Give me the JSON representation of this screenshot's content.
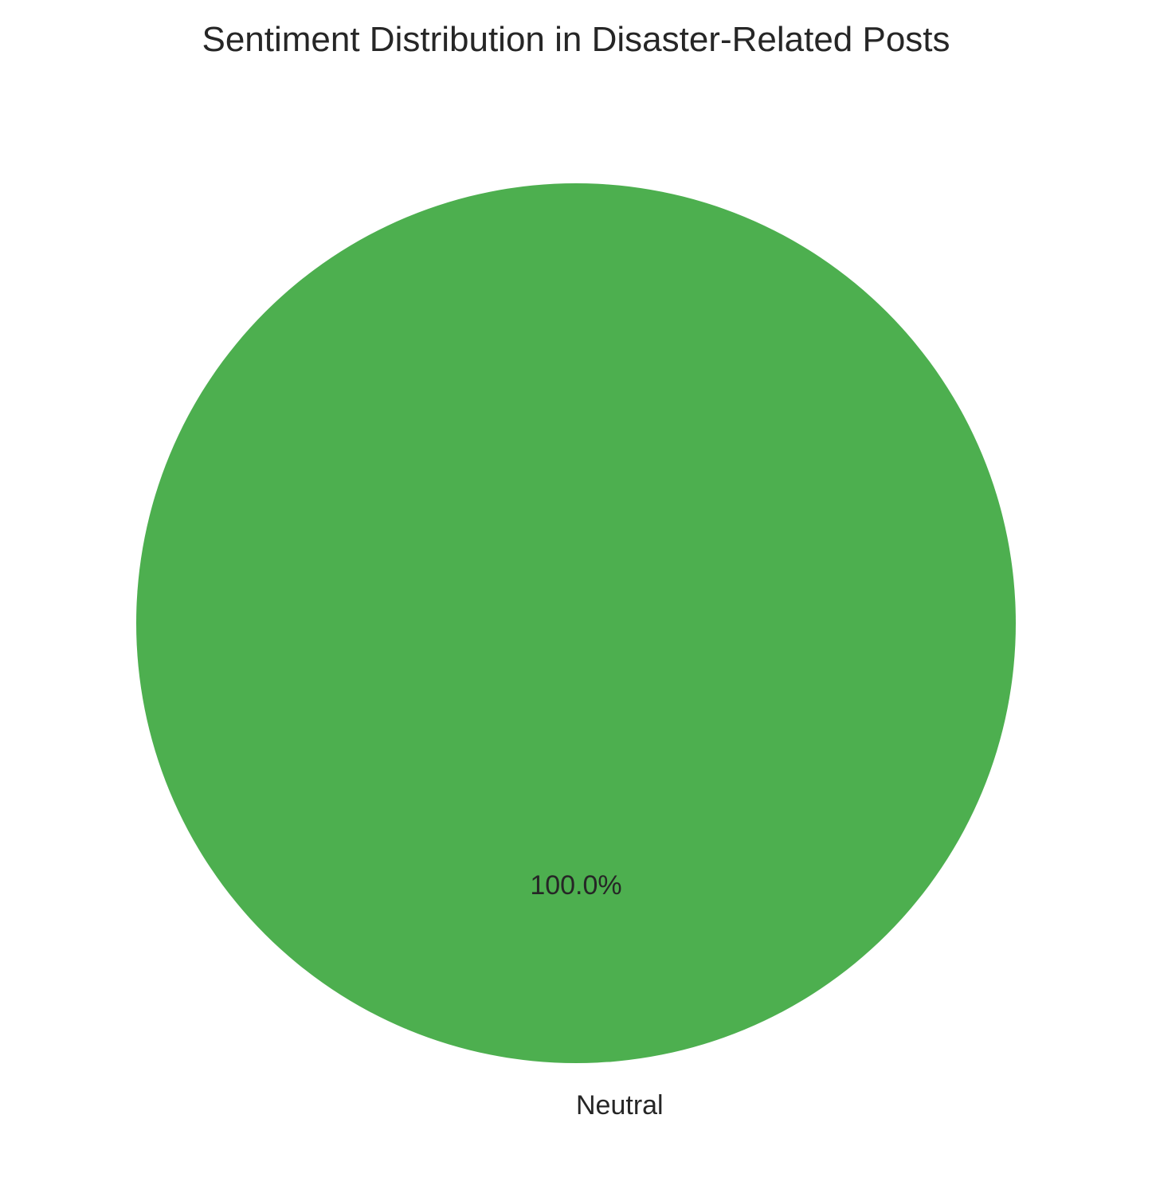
{
  "chart_data": {
    "type": "pie",
    "title": "Sentiment Distribution in Disaster-Related Posts",
    "categories": [
      "Neutral"
    ],
    "values": [
      100.0
    ],
    "percent_labels": [
      "100.0%"
    ],
    "colors": [
      "#4daf4f"
    ],
    "legend": "none"
  }
}
